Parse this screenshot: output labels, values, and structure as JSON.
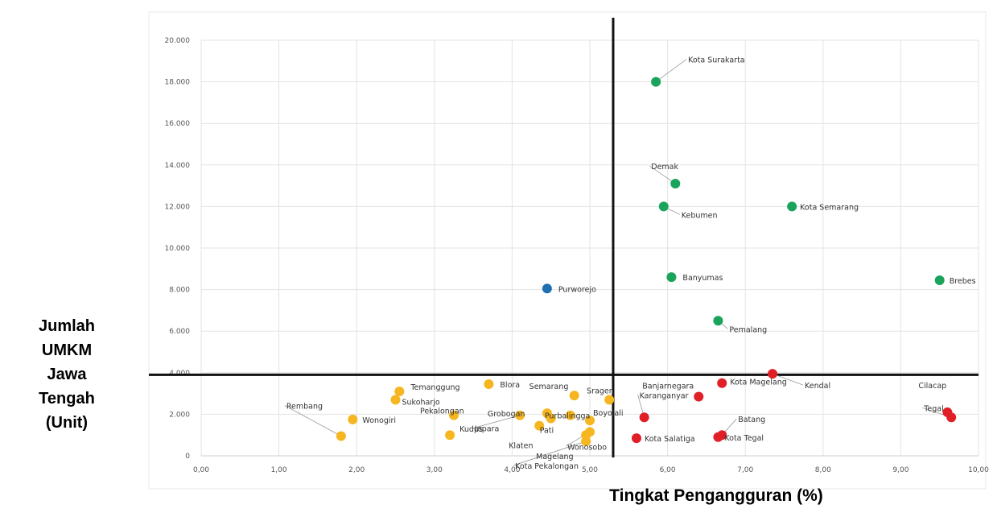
{
  "chart_data": {
    "type": "scatter",
    "xlabel": "Tingkat Pengangguran (%)",
    "ylabel_lines": [
      "Jumlah",
      "UMKM",
      "Jawa",
      "Tengah",
      "(Unit)"
    ],
    "xlim": [
      0,
      10
    ],
    "ylim": [
      0,
      20000
    ],
    "x_ticks": [
      "0,00",
      "1,00",
      "2,00",
      "3,00",
      "4,00",
      "5,00",
      "6,00",
      "7,00",
      "8,00",
      "9,00",
      "10,00"
    ],
    "y_ticks": [
      "0",
      "2.000",
      "4.000",
      "6.000",
      "8.000",
      "10.000",
      "12.000",
      "14.000",
      "16.000",
      "18.000",
      "20.000"
    ],
    "grid": true,
    "reference_lines": {
      "x": 5.3,
      "y": 3900
    },
    "colors": {
      "green": "#1aa35b",
      "yellow": "#f6b620",
      "red": "#e01f26",
      "blue": "#1f6fb2"
    },
    "points": [
      {
        "label": "Kota Surakarta",
        "x": 5.85,
        "y": 18000,
        "group": "green"
      },
      {
        "label": "Demak",
        "x": 6.1,
        "y": 13100,
        "group": "green"
      },
      {
        "label": "Kebumen",
        "x": 5.95,
        "y": 12000,
        "group": "green"
      },
      {
        "label": "Kota Semarang",
        "x": 7.6,
        "y": 12000,
        "group": "green"
      },
      {
        "label": "Banyumas",
        "x": 6.05,
        "y": 8600,
        "group": "green"
      },
      {
        "label": "Brebes",
        "x": 9.5,
        "y": 8450,
        "group": "green"
      },
      {
        "label": "Pemalang",
        "x": 6.65,
        "y": 6500,
        "group": "green"
      },
      {
        "label": "Purworejo",
        "x": 4.45,
        "y": 8050,
        "group": "blue"
      },
      {
        "label": "Kendal",
        "x": 7.35,
        "y": 3950,
        "group": "red"
      },
      {
        "label": "Kota Magelang",
        "x": 6.7,
        "y": 3500,
        "group": "red"
      },
      {
        "label": "Banjarnegara",
        "x": 6.4,
        "y": 2850,
        "group": "red"
      },
      {
        "label": "Karanganyar",
        "x": 5.7,
        "y": 1850,
        "group": "red"
      },
      {
        "label": "Kota Salatiga",
        "x": 5.6,
        "y": 850,
        "group": "red"
      },
      {
        "label": "Kota Tegal",
        "x": 6.65,
        "y": 900,
        "group": "red"
      },
      {
        "label": "Batang",
        "x": 6.7,
        "y": 1000,
        "group": "red"
      },
      {
        "label": "Cilacap",
        "x": 9.6,
        "y": 2100,
        "group": "red"
      },
      {
        "label": "Tegal",
        "x": 9.65,
        "y": 1850,
        "group": "red"
      },
      {
        "label": "Blora",
        "x": 3.7,
        "y": 3450,
        "group": "yellow"
      },
      {
        "label": "Temanggung",
        "x": 2.55,
        "y": 3100,
        "group": "yellow"
      },
      {
        "label": "Sukoharjo",
        "x": 2.5,
        "y": 2700,
        "group": "yellow"
      },
      {
        "label": "Pekalongan",
        "x": 3.25,
        "y": 1950,
        "group": "yellow"
      },
      {
        "label": "Rembang",
        "x": 1.8,
        "y": 950,
        "group": "yellow"
      },
      {
        "label": "Wonogiri",
        "x": 1.95,
        "y": 1750,
        "group": "yellow"
      },
      {
        "label": "Kudus",
        "x": 3.2,
        "y": 1000,
        "group": "yellow"
      },
      {
        "label": "Jepara",
        "x": 4.1,
        "y": 1950,
        "group": "yellow"
      },
      {
        "label": "Grobogan",
        "x": 4.45,
        "y": 2050,
        "group": "yellow"
      },
      {
        "label": "Purbalingga",
        "x": 4.75,
        "y": 1950,
        "group": "yellow"
      },
      {
        "label": "Semarang",
        "x": 4.8,
        "y": 2900,
        "group": "yellow"
      },
      {
        "label": "Sragen",
        "x": 5.25,
        "y": 2700,
        "group": "yellow"
      },
      {
        "label": "Pati",
        "x": 4.5,
        "y": 1800,
        "group": "yellow"
      },
      {
        "label": "Klaten",
        "x": 4.35,
        "y": 1450,
        "group": "yellow"
      },
      {
        "label": "Magelang",
        "x": 4.95,
        "y": 1000,
        "group": "yellow"
      },
      {
        "label": "Boyolali",
        "x": 5.0,
        "y": 1700,
        "group": "yellow"
      },
      {
        "label": "Wonosobo",
        "x": 5.0,
        "y": 1150,
        "group": "yellow"
      },
      {
        "label": "Kota Pekalongan",
        "x": 4.95,
        "y": 700,
        "group": "yellow"
      }
    ]
  }
}
